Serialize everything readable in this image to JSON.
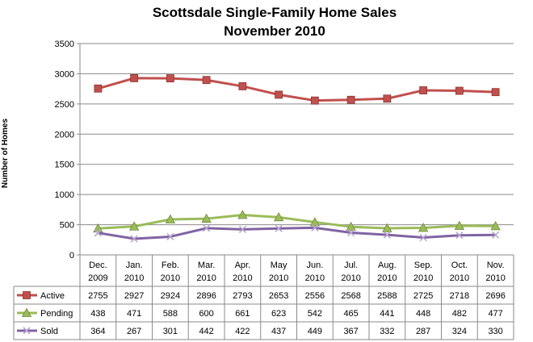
{
  "chart_data": {
    "type": "line",
    "title": "Scottsdale Single-Family Home Sales",
    "subtitle": "November 2010",
    "xlabel": "",
    "ylabel": "Number of Homes",
    "ylim": [
      0,
      3500
    ],
    "yticks": [
      "0",
      "500",
      "1000",
      "1500",
      "2000",
      "2500",
      "3000",
      "3500"
    ],
    "grid": true,
    "legend": "data-table",
    "categories": [
      [
        "Dec.",
        "2009"
      ],
      [
        "Jan.",
        "2010"
      ],
      [
        "Feb.",
        "2010"
      ],
      [
        "Mar.",
        "2010"
      ],
      [
        "Apr.",
        "2010"
      ],
      [
        "May",
        "2010"
      ],
      [
        "Jun.",
        "2010"
      ],
      [
        "Jul.",
        "2010"
      ],
      [
        "Aug.",
        "2010"
      ],
      [
        "Sep.",
        "2010"
      ],
      [
        "Oct.",
        "2010"
      ],
      [
        "Nov.",
        "2010"
      ]
    ],
    "series": [
      {
        "name": "Active",
        "color": "#c0504d",
        "marker": "square",
        "values": [
          2755,
          2927,
          2924,
          2896,
          2793,
          2653,
          2556,
          2568,
          2588,
          2725,
          2718,
          2696
        ]
      },
      {
        "name": "Pending",
        "color": "#9bbb59",
        "marker": "triangle",
        "values": [
          438,
          471,
          588,
          600,
          661,
          623,
          542,
          465,
          441,
          448,
          482,
          477
        ]
      },
      {
        "name": "Sold",
        "color": "#8064a2",
        "marker": "x",
        "values": [
          364,
          267,
          301,
          442,
          422,
          437,
          449,
          367,
          332,
          287,
          324,
          330
        ]
      }
    ]
  }
}
